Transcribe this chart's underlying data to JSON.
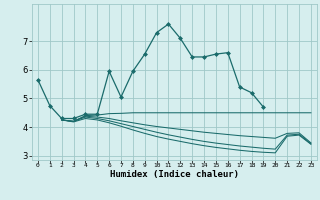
{
  "xlabel": "Humidex (Indice chaleur)",
  "bg_color": "#d6eeee",
  "grid_color": "#a0c8c8",
  "line_color": "#1a6b6b",
  "xlim": [
    -0.5,
    23.5
  ],
  "ylim": [
    2.85,
    8.3
  ],
  "xticks": [
    0,
    1,
    2,
    3,
    4,
    5,
    6,
    7,
    8,
    9,
    10,
    11,
    12,
    13,
    14,
    15,
    16,
    17,
    18,
    19,
    20,
    21,
    22,
    23
  ],
  "yticks": [
    3,
    4,
    5,
    6,
    7
  ],
  "series": [
    {
      "x": [
        0,
        1,
        2,
        3,
        4,
        5,
        6,
        7,
        8,
        9,
        10,
        11,
        12,
        13,
        14,
        15,
        16,
        17,
        18,
        19
      ],
      "y": [
        5.65,
        4.75,
        4.3,
        4.3,
        4.45,
        4.45,
        5.95,
        5.05,
        5.95,
        6.55,
        7.3,
        7.6,
        7.1,
        6.45,
        6.45,
        6.55,
        6.6,
        5.4,
        5.2,
        4.7
      ],
      "marker": true
    },
    {
      "x": [
        2,
        3,
        4,
        5,
        6,
        7,
        8,
        9,
        10,
        11,
        12,
        13,
        14,
        15,
        16,
        17,
        18,
        19,
        20,
        21,
        22,
        23
      ],
      "y": [
        4.25,
        4.2,
        4.4,
        4.42,
        4.47,
        4.48,
        4.5,
        4.5,
        4.5,
        4.5,
        4.5,
        4.5,
        4.5,
        4.5,
        4.5,
        4.5,
        4.5,
        4.5,
        4.5,
        4.5,
        4.5,
        4.5
      ],
      "marker": false
    },
    {
      "x": [
        2,
        3,
        4,
        5,
        6,
        7,
        8,
        9,
        10,
        11,
        12,
        13,
        14,
        15,
        16,
        17,
        18,
        19,
        20,
        21,
        22,
        23
      ],
      "y": [
        4.25,
        4.2,
        4.38,
        4.35,
        4.3,
        4.22,
        4.15,
        4.08,
        4.02,
        3.97,
        3.92,
        3.87,
        3.82,
        3.78,
        3.74,
        3.7,
        3.67,
        3.64,
        3.61,
        3.78,
        3.8,
        3.45
      ],
      "marker": false
    },
    {
      "x": [
        2,
        3,
        4,
        5,
        6,
        7,
        8,
        9,
        10,
        11,
        12,
        13,
        14,
        15,
        16,
        17,
        18,
        19,
        20,
        21,
        22,
        23
      ],
      "y": [
        4.25,
        4.2,
        4.35,
        4.3,
        4.22,
        4.12,
        4.02,
        3.92,
        3.82,
        3.73,
        3.65,
        3.57,
        3.5,
        3.44,
        3.39,
        3.34,
        3.3,
        3.26,
        3.23,
        3.72,
        3.75,
        3.42
      ],
      "marker": false
    },
    {
      "x": [
        2,
        3,
        4,
        5,
        6,
        7,
        8,
        9,
        10,
        11,
        12,
        13,
        14,
        15,
        16,
        17,
        18,
        19,
        20,
        21,
        22,
        23
      ],
      "y": [
        4.25,
        4.18,
        4.3,
        4.25,
        4.15,
        4.03,
        3.9,
        3.78,
        3.67,
        3.58,
        3.5,
        3.42,
        3.35,
        3.29,
        3.24,
        3.19,
        3.15,
        3.12,
        3.1,
        3.68,
        3.72,
        3.4
      ],
      "marker": false
    }
  ]
}
